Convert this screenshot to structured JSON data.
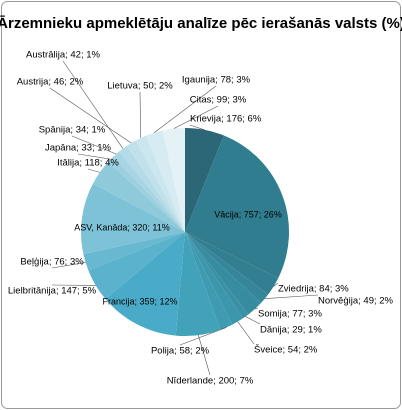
{
  "chart_data": {
    "type": "pie",
    "title": "Ārzemnieku apmeklētāju analīze pēc ierašanās valsts (%)",
    "categories": [
      "Krievija",
      "Vācija",
      "Zviedrija",
      "Norvēģija",
      "Somija",
      "Dānija",
      "Šveice",
      "Polija",
      "Nīderlande",
      "Francija",
      "Lielbritānija",
      "Beļģija",
      "ASV, Kanāda",
      "Itālija",
      "Japāna",
      "Spānija",
      "Austrālija",
      "Austrija",
      "Lietuva",
      "Igaunija",
      "Citas"
    ],
    "values": [
      176,
      757,
      84,
      49,
      77,
      29,
      54,
      58,
      200,
      359,
      147,
      76,
      320,
      118,
      33,
      34,
      42,
      46,
      50,
      78,
      99
    ],
    "value_labels": [
      "Krievija; 176; 6%",
      "Vācija; 757; 26%",
      "Zviedrija; 84; 3%",
      "Norvēģija; 49; 2%",
      "Somija; 77; 3%",
      "Dānija; 29; 1%",
      "Šveice; 54; 2%",
      "Polija; 58; 2%",
      "Nīderlande; 200; 7%",
      "Francija; 359; 12%",
      "Lielbritānija; 147; 5%",
      "Beļģija; 76; 3%",
      "ASV, Kanāda; 320; 11%",
      "Itālija; 118; 4%",
      "Japāna; 33; 1%",
      "Spānija; 34; 1%",
      "Austrālija; 42; 1%",
      "Austrija; 46; 2%",
      "Lietuva; 50; 2%",
      "Igaunija; 78; 3%",
      "Citas; 99; 3%"
    ],
    "colors": [
      "#2b6777",
      "#2f7d8f",
      "#327f92",
      "#358699",
      "#388ca0",
      "#3a91a6",
      "#3c96ac",
      "#3f9bb2",
      "#42a2ba",
      "#4aabc8",
      "#5ab2cd",
      "#68b8d1",
      "#7ec2d7",
      "#8ecad9",
      "#9ccfdf",
      "#a8d5e3",
      "#b4dbe7",
      "#c0e1eb",
      "#cbe6ef",
      "#d6ecf2",
      "#e4f2f6"
    ]
  }
}
